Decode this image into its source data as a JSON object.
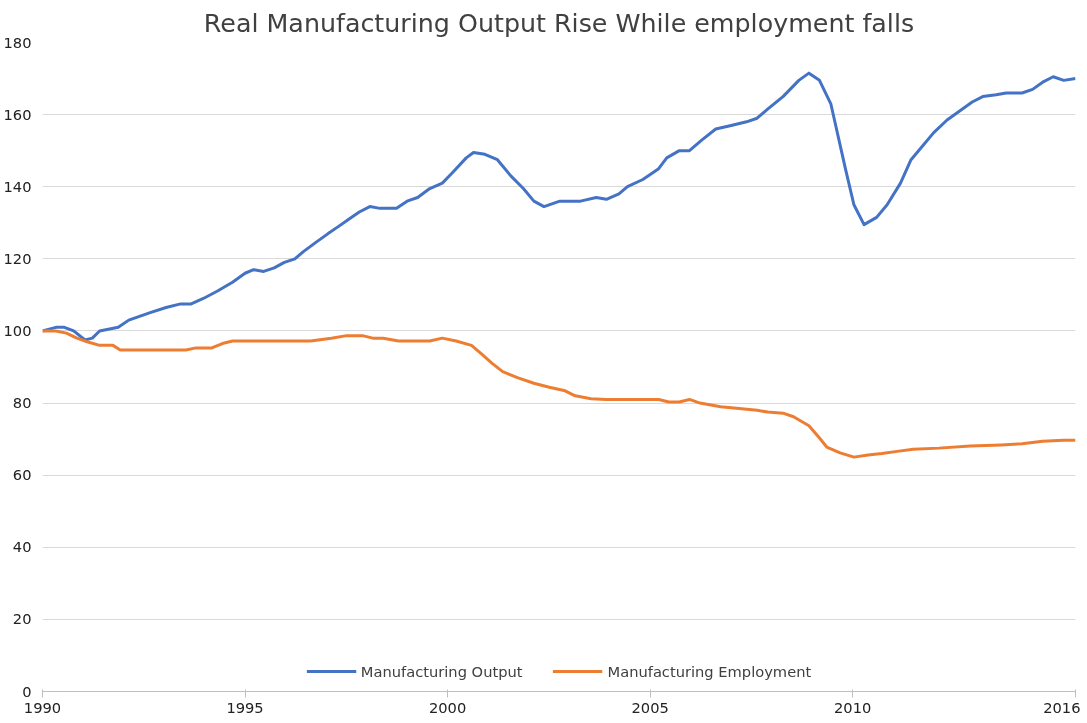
{
  "chart_data": {
    "type": "line",
    "title": "Real Manufacturing Output Rise While employment falls",
    "xlim": [
      1990,
      2015.5
    ],
    "xticks": [
      1990,
      1995,
      2000,
      2005,
      2010,
      {
        "value": 2015.5,
        "label": "2016"
      }
    ],
    "ylim": [
      0,
      180
    ],
    "yticks": [
      0,
      20,
      40,
      60,
      80,
      100,
      120,
      140,
      160,
      180
    ],
    "grid": "y",
    "legend": "bottom",
    "marker": "none",
    "line_style": "solid",
    "series": [
      {
        "name": "Manufacturing Output",
        "color": "#4472c4",
        "x": [
          1990.0,
          1990.33,
          1990.54,
          1990.77,
          1991.05,
          1991.23,
          1991.41,
          1991.87,
          1992.13,
          1992.64,
          1993.05,
          1993.41,
          1993.67,
          1993.97,
          1994.31,
          1994.69,
          1995.0,
          1995.21,
          1995.46,
          1995.72,
          1995.97,
          1996.23,
          1996.44,
          1996.74,
          1997.05,
          1997.31,
          1997.56,
          1997.82,
          1998.08,
          1998.33,
          1998.74,
          1999.0,
          1999.26,
          1999.56,
          1999.87,
          2000.13,
          2000.46,
          2000.64,
          2000.92,
          2001.23,
          2001.56,
          2001.87,
          2002.13,
          2002.38,
          2002.77,
          2003.28,
          2003.67,
          2003.92,
          2004.23,
          2004.44,
          2004.82,
          2005.21,
          2005.41,
          2005.72,
          2005.97,
          2006.28,
          2006.62,
          2007.0,
          2007.38,
          2007.64,
          2007.9,
          2008.28,
          2008.67,
          2008.92,
          2009.18,
          2009.46,
          2009.82,
          2010.03,
          2010.28,
          2010.59,
          2010.85,
          2011.18,
          2011.44,
          2011.74,
          2012.0,
          2012.33,
          2012.64,
          2012.95,
          2013.21,
          2013.54,
          2013.79,
          2014.18,
          2014.44,
          2014.69,
          2014.95,
          2015.21,
          2015.5
        ],
        "values": [
          100,
          101,
          101,
          100,
          97.5,
          98,
          100,
          101,
          103,
          105,
          106.5,
          107.5,
          107.5,
          109,
          111,
          113.5,
          116,
          117,
          116.5,
          117.5,
          119,
          120,
          122,
          124.5,
          127,
          129,
          131,
          133,
          134.5,
          134,
          134,
          136,
          137,
          139.5,
          141,
          144,
          148,
          149.5,
          149,
          147.5,
          143,
          139.5,
          136,
          134.5,
          136,
          136,
          137,
          136.5,
          138,
          140,
          142,
          145,
          148,
          150,
          150,
          153,
          156,
          157,
          158,
          159,
          161.5,
          165,
          169.5,
          171.5,
          169.5,
          163,
          145,
          135,
          129.5,
          131.5,
          135,
          141,
          147.5,
          151.5,
          155,
          158.5,
          161,
          163.5,
          165,
          165.5,
          166,
          166,
          167,
          169,
          170.5,
          169.5,
          170
        ]
      },
      {
        "name": "Manufacturing Employment",
        "color": "#ed7d31",
        "x": [
          1990.0,
          1990.33,
          1990.59,
          1990.85,
          1991.1,
          1991.41,
          1991.74,
          1991.92,
          1993.54,
          1993.79,
          1994.18,
          1994.44,
          1994.69,
          1996.62,
          1997.13,
          1997.51,
          1997.9,
          1998.15,
          1998.41,
          1998.79,
          1999.56,
          1999.87,
          2000.21,
          2000.59,
          2000.85,
          2001.1,
          2001.36,
          2001.74,
          2002.13,
          2002.51,
          2002.9,
          2003.15,
          2003.54,
          2003.92,
          2005.21,
          2005.46,
          2005.72,
          2005.97,
          2006.23,
          2006.74,
          2007.26,
          2007.64,
          2007.9,
          2008.28,
          2008.54,
          2008.92,
          2009.18,
          2009.36,
          2009.69,
          2010.03,
          2010.38,
          2010.72,
          2011.1,
          2011.49,
          2012.13,
          2012.9,
          2013.67,
          2014.18,
          2014.69,
          2015.21,
          2015.5
        ],
        "values": [
          100,
          100,
          99.4,
          98,
          97,
          96,
          96,
          94.7,
          94.7,
          95.3,
          95.3,
          96.5,
          97.2,
          97.2,
          98,
          98.7,
          98.7,
          98,
          98,
          97.2,
          97.2,
          98,
          97.2,
          96,
          93.5,
          91,
          88.7,
          87,
          85.5,
          84.4,
          83.4,
          82,
          81.2,
          81,
          81,
          80.3,
          80.3,
          81,
          80,
          79,
          78.4,
          78,
          77.5,
          77.2,
          76.2,
          73.7,
          70.3,
          67.8,
          66.2,
          65,
          65.6,
          66,
          66.6,
          67.2,
          67.5,
          68.1,
          68.4,
          68.7,
          69.4,
          69.7,
          69.7
        ]
      }
    ]
  }
}
